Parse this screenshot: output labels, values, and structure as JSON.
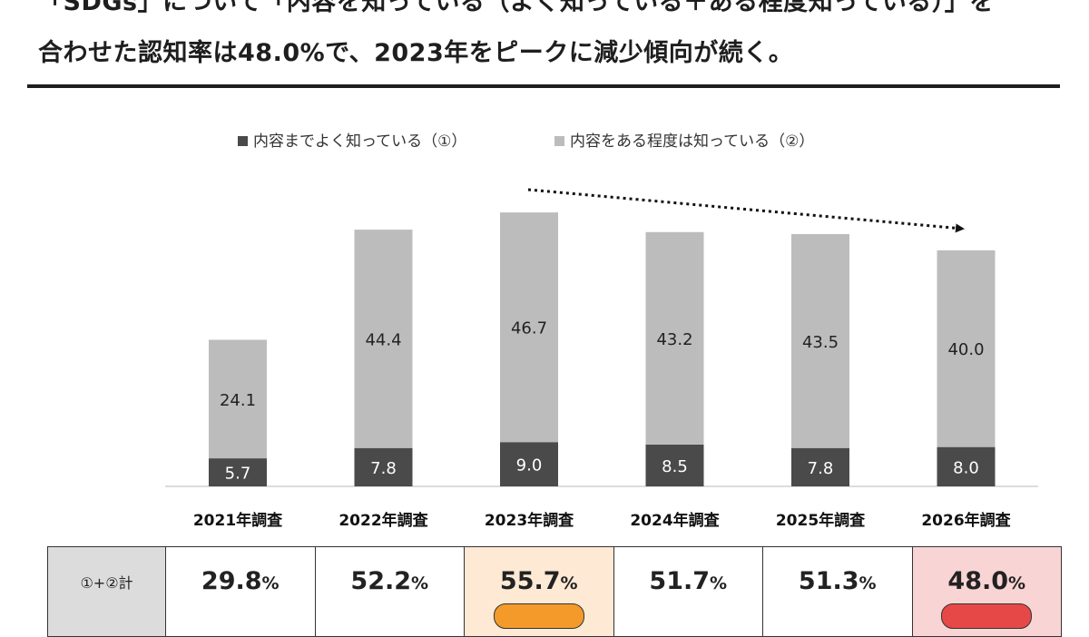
{
  "headline": {
    "line1": "「SDGs」について「内容を知っている（よく知っている＋ある程度知っている）」を",
    "line2": "合わせた認知率は48.0%で、2023年をピークに減少傾向が続く。"
  },
  "colors": {
    "dark": "#4a4a4a",
    "light": "#bcbcbc",
    "peak_bg": "#fde9d4",
    "low_bg": "#f9d4d4",
    "peak_badge": "#f39a2b",
    "low_badge": "#e64848"
  },
  "chart_data": {
    "type": "bar",
    "stacked": true,
    "categories": [
      "2021年調査",
      "2022年調査",
      "2023年調査",
      "2024年調査",
      "2025年調査",
      "2026年調査"
    ],
    "series": [
      {
        "name": "内容までよく知っている（①）",
        "values": [
          5.7,
          7.8,
          9.0,
          8.5,
          7.8,
          8.0
        ]
      },
      {
        "name": "内容をある程度は知っている（②）",
        "values": [
          24.1,
          44.4,
          46.7,
          43.2,
          43.5,
          40.0
        ]
      }
    ],
    "legend_placement": "top",
    "annotation": "dotted downward trend arrow from 2023 to 2026"
  },
  "summary": {
    "row_label": "①+②計",
    "totals": [
      "29.8",
      "52.2",
      "55.7",
      "51.7",
      "51.3",
      "48.0"
    ],
    "unit": "%"
  }
}
